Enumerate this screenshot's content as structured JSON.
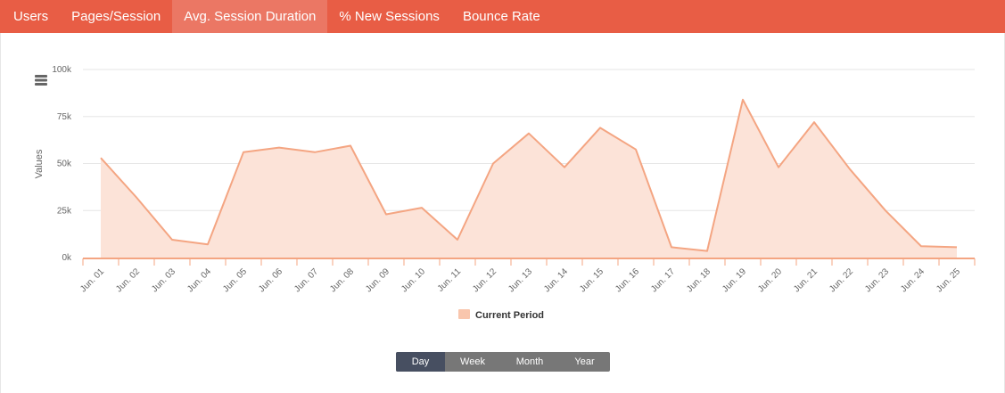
{
  "tabs": [
    {
      "label": "Users",
      "active": false
    },
    {
      "label": "Pages/Session",
      "active": false
    },
    {
      "label": "Avg. Session Duration",
      "active": true
    },
    {
      "label": "% New Sessions",
      "active": false
    },
    {
      "label": "Bounce Rate",
      "active": false
    }
  ],
  "colors": {
    "tab_bar": "#e85d45",
    "tab_active": "#eb7764",
    "series_line": "#f4a582",
    "series_fill": "#fce3d8",
    "axis_line": "#f4a582",
    "period_active": "#474f61",
    "period_bg": "#777777"
  },
  "chart_data": {
    "type": "area",
    "ylabel": "Values",
    "ylim": [
      0,
      100000
    ],
    "yticks": [
      0,
      25000,
      50000,
      75000,
      100000
    ],
    "ytick_labels": [
      "0k",
      "25k",
      "50k",
      "75k",
      "100k"
    ],
    "grid": true,
    "legend_position": "bottom-center",
    "categories": [
      "Jun. 01",
      "Jun. 02",
      "Jun. 03",
      "Jun. 04",
      "Jun. 05",
      "Jun. 06",
      "Jun. 07",
      "Jun. 08",
      "Jun. 09",
      "Jun. 10",
      "Jun. 11",
      "Jun. 12",
      "Jun. 13",
      "Jun. 14",
      "Jun. 15",
      "Jun. 16",
      "Jun. 17",
      "Jun. 18",
      "Jun. 19",
      "Jun. 20",
      "Jun. 21",
      "Jun. 22",
      "Jun. 23",
      "Jun. 24",
      "Jun. 25"
    ],
    "series": [
      {
        "name": "Current Period",
        "values": [
          53000,
          32000,
          9500,
          7000,
          56000,
          58500,
          56000,
          59500,
          23000,
          26500,
          9500,
          50000,
          66000,
          48000,
          69000,
          57500,
          5500,
          3500,
          84000,
          48000,
          72000,
          47000,
          25000,
          6000,
          5500
        ]
      }
    ]
  },
  "period_selector": {
    "options": [
      "Day",
      "Week",
      "Month",
      "Year"
    ],
    "selected": "Day"
  }
}
